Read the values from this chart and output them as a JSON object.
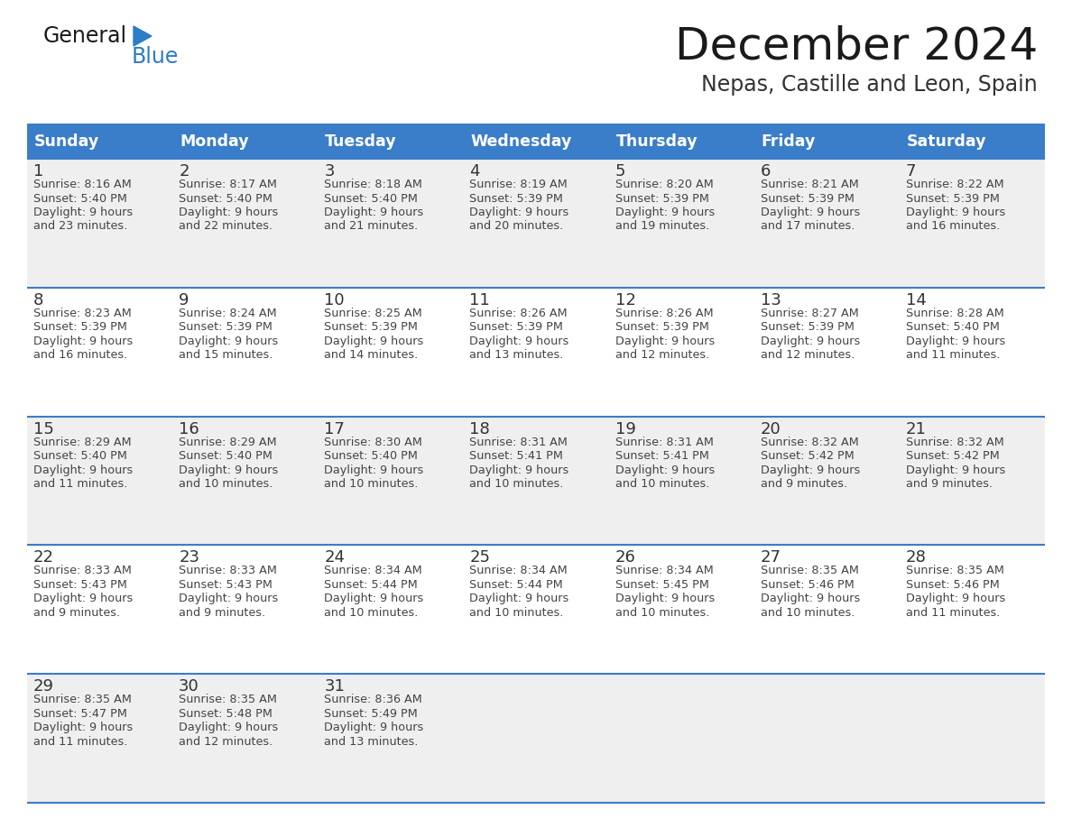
{
  "title": "December 2024",
  "subtitle": "Nepas, Castille and Leon, Spain",
  "days_of_week": [
    "Sunday",
    "Monday",
    "Tuesday",
    "Wednesday",
    "Thursday",
    "Friday",
    "Saturday"
  ],
  "header_bg": "#3A7DC9",
  "header_text": "#FFFFFF",
  "row_bg_even": "#EFEFEF",
  "row_bg_odd": "#FFFFFF",
  "cell_border": "#3A7DC9",
  "day_num_color": "#333333",
  "text_color": "#444444",
  "title_color": "#1a1a1a",
  "subtitle_color": "#333333",
  "logo_general_color": "#1a1a1a",
  "logo_blue_color": "#2B7DC8",
  "fig_width": 11.88,
  "fig_height": 9.18,
  "dpi": 100,
  "calendar_data": [
    [
      {
        "day": 1,
        "sunrise": "8:16 AM",
        "sunset": "5:40 PM",
        "daylight": "9 hours and 23 minutes."
      },
      {
        "day": 2,
        "sunrise": "8:17 AM",
        "sunset": "5:40 PM",
        "daylight": "9 hours and 22 minutes."
      },
      {
        "day": 3,
        "sunrise": "8:18 AM",
        "sunset": "5:40 PM",
        "daylight": "9 hours and 21 minutes."
      },
      {
        "day": 4,
        "sunrise": "8:19 AM",
        "sunset": "5:39 PM",
        "daylight": "9 hours and 20 minutes."
      },
      {
        "day": 5,
        "sunrise": "8:20 AM",
        "sunset": "5:39 PM",
        "daylight": "9 hours and 19 minutes."
      },
      {
        "day": 6,
        "sunrise": "8:21 AM",
        "sunset": "5:39 PM",
        "daylight": "9 hours and 17 minutes."
      },
      {
        "day": 7,
        "sunrise": "8:22 AM",
        "sunset": "5:39 PM",
        "daylight": "9 hours and 16 minutes."
      }
    ],
    [
      {
        "day": 8,
        "sunrise": "8:23 AM",
        "sunset": "5:39 PM",
        "daylight": "9 hours and 16 minutes."
      },
      {
        "day": 9,
        "sunrise": "8:24 AM",
        "sunset": "5:39 PM",
        "daylight": "9 hours and 15 minutes."
      },
      {
        "day": 10,
        "sunrise": "8:25 AM",
        "sunset": "5:39 PM",
        "daylight": "9 hours and 14 minutes."
      },
      {
        "day": 11,
        "sunrise": "8:26 AM",
        "sunset": "5:39 PM",
        "daylight": "9 hours and 13 minutes."
      },
      {
        "day": 12,
        "sunrise": "8:26 AM",
        "sunset": "5:39 PM",
        "daylight": "9 hours and 12 minutes."
      },
      {
        "day": 13,
        "sunrise": "8:27 AM",
        "sunset": "5:39 PM",
        "daylight": "9 hours and 12 minutes."
      },
      {
        "day": 14,
        "sunrise": "8:28 AM",
        "sunset": "5:40 PM",
        "daylight": "9 hours and 11 minutes."
      }
    ],
    [
      {
        "day": 15,
        "sunrise": "8:29 AM",
        "sunset": "5:40 PM",
        "daylight": "9 hours and 11 minutes."
      },
      {
        "day": 16,
        "sunrise": "8:29 AM",
        "sunset": "5:40 PM",
        "daylight": "9 hours and 10 minutes."
      },
      {
        "day": 17,
        "sunrise": "8:30 AM",
        "sunset": "5:40 PM",
        "daylight": "9 hours and 10 minutes."
      },
      {
        "day": 18,
        "sunrise": "8:31 AM",
        "sunset": "5:41 PM",
        "daylight": "9 hours and 10 minutes."
      },
      {
        "day": 19,
        "sunrise": "8:31 AM",
        "sunset": "5:41 PM",
        "daylight": "9 hours and 10 minutes."
      },
      {
        "day": 20,
        "sunrise": "8:32 AM",
        "sunset": "5:42 PM",
        "daylight": "9 hours and 9 minutes."
      },
      {
        "day": 21,
        "sunrise": "8:32 AM",
        "sunset": "5:42 PM",
        "daylight": "9 hours and 9 minutes."
      }
    ],
    [
      {
        "day": 22,
        "sunrise": "8:33 AM",
        "sunset": "5:43 PM",
        "daylight": "9 hours and 9 minutes."
      },
      {
        "day": 23,
        "sunrise": "8:33 AM",
        "sunset": "5:43 PM",
        "daylight": "9 hours and 9 minutes."
      },
      {
        "day": 24,
        "sunrise": "8:34 AM",
        "sunset": "5:44 PM",
        "daylight": "9 hours and 10 minutes."
      },
      {
        "day": 25,
        "sunrise": "8:34 AM",
        "sunset": "5:44 PM",
        "daylight": "9 hours and 10 minutes."
      },
      {
        "day": 26,
        "sunrise": "8:34 AM",
        "sunset": "5:45 PM",
        "daylight": "9 hours and 10 minutes."
      },
      {
        "day": 27,
        "sunrise": "8:35 AM",
        "sunset": "5:46 PM",
        "daylight": "9 hours and 10 minutes."
      },
      {
        "day": 28,
        "sunrise": "8:35 AM",
        "sunset": "5:46 PM",
        "daylight": "9 hours and 11 minutes."
      }
    ],
    [
      {
        "day": 29,
        "sunrise": "8:35 AM",
        "sunset": "5:47 PM",
        "daylight": "9 hours and 11 minutes."
      },
      {
        "day": 30,
        "sunrise": "8:35 AM",
        "sunset": "5:48 PM",
        "daylight": "9 hours and 12 minutes."
      },
      {
        "day": 31,
        "sunrise": "8:36 AM",
        "sunset": "5:49 PM",
        "daylight": "9 hours and 13 minutes."
      },
      null,
      null,
      null,
      null
    ]
  ]
}
